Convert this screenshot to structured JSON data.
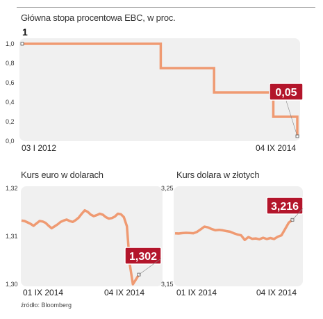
{
  "colors": {
    "line": "#ef9a72",
    "callout": "#b3152b",
    "panel": "#f0f0f0",
    "text": "#222222"
  },
  "chart_data": [
    {
      "type": "line",
      "title": "Główna stopa procentowa EBC, w proc.",
      "start_value_label": "1",
      "y_ticks": [
        "1,0",
        "0,8",
        "0,6",
        "0,4",
        "0,2",
        "0,0"
      ],
      "ylim": [
        0,
        1.0
      ],
      "x_labels": [
        "03 I 2012",
        "04 IX 2014"
      ],
      "x": [
        "2012-01-03",
        "2013-05-08",
        "2013-11-13",
        "2014-06-11",
        "2014-09-04"
      ],
      "values": [
        1.0,
        0.75,
        0.5,
        0.25,
        0.15
      ],
      "end_value": 0.05,
      "callout": "0,05",
      "grid": false
    },
    {
      "type": "line",
      "title": "Kurs euro w dolarach",
      "y_ticks": [
        "1,32",
        "1,31",
        "1,30"
      ],
      "ylim": [
        1.3,
        1.32
      ],
      "x_labels": [
        "01 IX 2014",
        "04 IX 2014"
      ],
      "values": [
        1.3132,
        1.3131,
        1.3128,
        1.3125,
        1.3121,
        1.3126,
        1.3131,
        1.313,
        1.3127,
        1.3121,
        1.3116,
        1.312,
        1.3124,
        1.3129,
        1.3132,
        1.3134,
        1.3131,
        1.3129,
        1.3133,
        1.3138,
        1.3146,
        1.3153,
        1.315,
        1.3144,
        1.3141,
        1.3143,
        1.3146,
        1.3144,
        1.3139,
        1.3136,
        1.3137,
        1.314,
        1.3146,
        1.3145,
        1.3139,
        1.312,
        1.304,
        1.3,
        1.301,
        1.302
      ],
      "end_value": 1.302,
      "callout": "1,302",
      "grid": false
    },
    {
      "type": "line",
      "title": "Kurs dolara w złotych",
      "y_ticks": [
        "3,25",
        "3,15"
      ],
      "ylim": [
        3.15,
        3.25
      ],
      "x_labels": [
        "01 IX 2014",
        "04 IX 2014"
      ],
      "values": [
        3.202,
        3.2018,
        3.2022,
        3.2025,
        3.2023,
        3.2021,
        3.2035,
        3.2062,
        3.2089,
        3.2081,
        3.2064,
        3.2052,
        3.2056,
        3.2051,
        3.2043,
        3.2037,
        3.2021,
        3.2008,
        3.1999,
        3.1952,
        3.1981,
        3.1963,
        3.1967,
        3.1958,
        3.1974,
        3.1961,
        3.1971,
        3.1961,
        3.1985,
        3.1999,
        3.2064,
        3.213,
        3.216
      ],
      "end_value": 3.216,
      "callout": "3,216",
      "grid": false
    }
  ],
  "source": "źródło: Bloomberg"
}
